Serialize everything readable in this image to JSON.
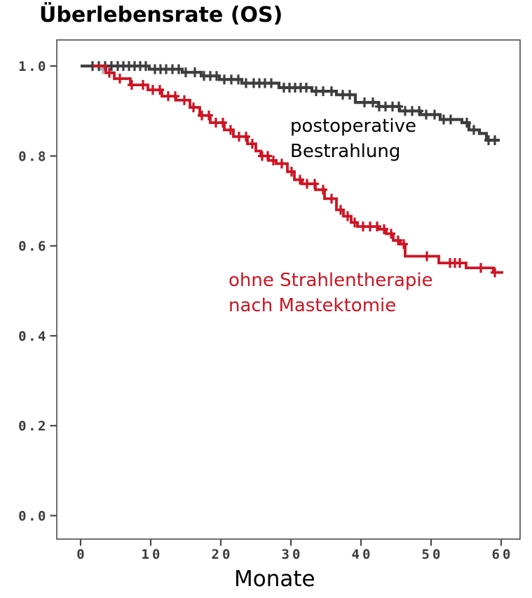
{
  "page": {
    "background": "#ffffff"
  },
  "title": "Überlebensrate (OS)",
  "xlabel": "Monate",
  "chart_data": {
    "type": "line",
    "style": "kaplan-meier-step",
    "title": "Überlebensrate (OS)",
    "xlabel": "Monate",
    "ylabel": "",
    "x_ticks": [
      0,
      10,
      20,
      30,
      40,
      50,
      60
    ],
    "y_ticks": [
      "0.0",
      "0.2",
      "0.4",
      "0.6",
      "0.8",
      "1.0"
    ],
    "xlim": [
      -3.4,
      62.7
    ],
    "ylim": [
      -0.05,
      1.06
    ],
    "grid": false,
    "legend_position": "inline-annotations",
    "axis_color": "#4a4a4a",
    "tick_label_color": "#3b3b3b",
    "series": [
      {
        "name": "postoperative Bestrahlung",
        "color": "#3d3d3d",
        "label_lines": [
          "postoperative",
          "Bestrahlung"
        ],
        "end_value": 0.835,
        "steps": [
          [
            0,
            1.0
          ],
          [
            9.8,
            0.993
          ],
          [
            14.5,
            0.986
          ],
          [
            17.2,
            0.978
          ],
          [
            19.8,
            0.97
          ],
          [
            23,
            0.962
          ],
          [
            28.3,
            0.952
          ],
          [
            33,
            0.944
          ],
          [
            36.5,
            0.936
          ],
          [
            39.2,
            0.919
          ],
          [
            42.5,
            0.91
          ],
          [
            45.5,
            0.9
          ],
          [
            48.5,
            0.892
          ],
          [
            51.3,
            0.881
          ],
          [
            54.4,
            0.874
          ],
          [
            55.4,
            0.858
          ],
          [
            56.9,
            0.85
          ],
          [
            57.9,
            0.835
          ],
          [
            59.8,
            0.835
          ]
        ],
        "censor_months": [
          1.7,
          2.6,
          3.5,
          4.4,
          5.3,
          6.1,
          6.9,
          7.7,
          8.5,
          9.3,
          10.6,
          11.4,
          12.2,
          13.1,
          14,
          15,
          16.3,
          17.6,
          18.5,
          19.4,
          20.5,
          21.5,
          22.5,
          23.6,
          24.7,
          25.5,
          26.3,
          27.2,
          29,
          29.8,
          30.6,
          31.4,
          32.2,
          33.6,
          34.6,
          35.8,
          37.4,
          38.4,
          40.5,
          41.7,
          42.6,
          43.5,
          44.5,
          45.4,
          46.3,
          47.3,
          48.3,
          49.3,
          50.5,
          51.8,
          52.8,
          55.1,
          56.1,
          58.2,
          59.1
        ]
      },
      {
        "name": "ohne Strahlentherapie nach Mastektomie",
        "color": "#cd1423",
        "label_lines": [
          "ohne Strahlentherapie",
          "nach Mastektomie"
        ],
        "end_value": 0.541,
        "steps": [
          [
            1.8,
            1.0
          ],
          [
            3.6,
            0.985
          ],
          [
            4.8,
            0.972
          ],
          [
            7.1,
            0.958
          ],
          [
            9.6,
            0.947
          ],
          [
            11.6,
            0.933
          ],
          [
            13.6,
            0.924
          ],
          [
            15.6,
            0.908
          ],
          [
            17,
            0.89
          ],
          [
            18.5,
            0.874
          ],
          [
            20.5,
            0.858
          ],
          [
            21.8,
            0.843
          ],
          [
            23.8,
            0.827
          ],
          [
            25,
            0.811
          ],
          [
            25.7,
            0.8
          ],
          [
            26.8,
            0.79
          ],
          [
            27.9,
            0.783
          ],
          [
            29.5,
            0.765
          ],
          [
            30.5,
            0.747
          ],
          [
            31.6,
            0.738
          ],
          [
            33.5,
            0.725
          ],
          [
            34.8,
            0.705
          ],
          [
            36.5,
            0.68
          ],
          [
            37.5,
            0.666
          ],
          [
            38.6,
            0.652
          ],
          [
            39.5,
            0.643
          ],
          [
            42.5,
            0.637
          ],
          [
            43.6,
            0.627
          ],
          [
            44.6,
            0.612
          ],
          [
            45.6,
            0.604
          ],
          [
            46.3,
            0.577
          ],
          [
            51.1,
            0.562
          ],
          [
            55,
            0.551
          ],
          [
            58.9,
            0.541
          ],
          [
            60.3,
            0.541
          ]
        ],
        "censor_months": [
          4.1,
          5.6,
          7.3,
          8.9,
          10.3,
          11.3,
          12.5,
          13.5,
          14.8,
          16.1,
          17.3,
          18.3,
          19.3,
          20.3,
          21.4,
          22.6,
          23.6,
          24.5,
          25.9,
          26.7,
          27.5,
          28.7,
          30.1,
          31.3,
          32.3,
          33.4,
          34.6,
          35.8,
          37.1,
          38.1,
          39.1,
          40.3,
          41.3,
          42.3,
          43.3,
          44.3,
          45.3,
          46.1,
          49.4,
          52.7,
          53.4,
          54.1,
          57.1,
          59.1
        ]
      }
    ],
    "extra_marks": [
      {
        "month": 3.2,
        "value": 0.993,
        "color": "#aeaeb4"
      }
    ]
  }
}
